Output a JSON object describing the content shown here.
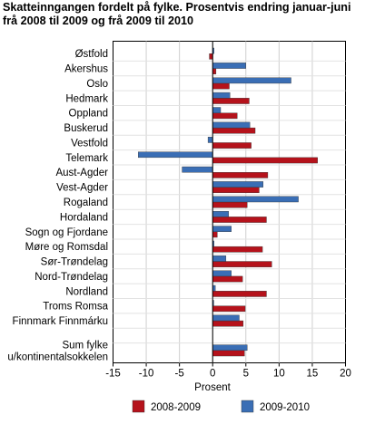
{
  "title_lines": [
    "Skatteinngangen fordelt på fylke. Prosentvis endring januar-juni",
    "frå 2008 til 2009 og frå 2009 til 2010"
  ],
  "chart_data": {
    "type": "bar",
    "orientation": "horizontal",
    "categories": [
      "Østfold",
      "Akershus",
      "Oslo",
      "Hedmark",
      "Oppland",
      "Buskerud",
      "Vestfold",
      "Telemark",
      "Aust-Agder",
      "Vest-Agder",
      "Rogaland",
      "Hordaland",
      "Sogn og Fjordane",
      "Møre og Romsdal",
      "Sør-Trøndelag",
      "Nord-Trøndelag",
      "Nordland",
      "Troms Romsa",
      "Finnmark Finnmárku",
      "",
      "Sum fylke\nu/kontinentalsokkelen"
    ],
    "series": [
      {
        "name": "2008-2009",
        "color": "#b5121b",
        "values": [
          -0.5,
          0.5,
          2.5,
          5.5,
          3.7,
          6.4,
          5.8,
          15.8,
          8.3,
          7.0,
          5.2,
          8.1,
          0.7,
          7.5,
          8.9,
          4.5,
          8.1,
          4.9,
          4.6,
          null,
          4.8
        ]
      },
      {
        "name": "2009-2010",
        "color": "#3a6eb5",
        "values": [
          0.2,
          5.0,
          11.8,
          2.6,
          1.2,
          5.6,
          -0.7,
          -11.2,
          -4.6,
          7.6,
          12.9,
          2.4,
          2.8,
          0.2,
          2.0,
          2.8,
          0.4,
          0.0,
          4.0,
          null,
          5.2
        ]
      }
    ],
    "xlabel": "Prosent",
    "xlim": [
      -15,
      20
    ],
    "xticks": [
      -15,
      -10,
      -5,
      0,
      5,
      10,
      15,
      20
    ],
    "grid": "vertical",
    "legend": "bottom"
  }
}
